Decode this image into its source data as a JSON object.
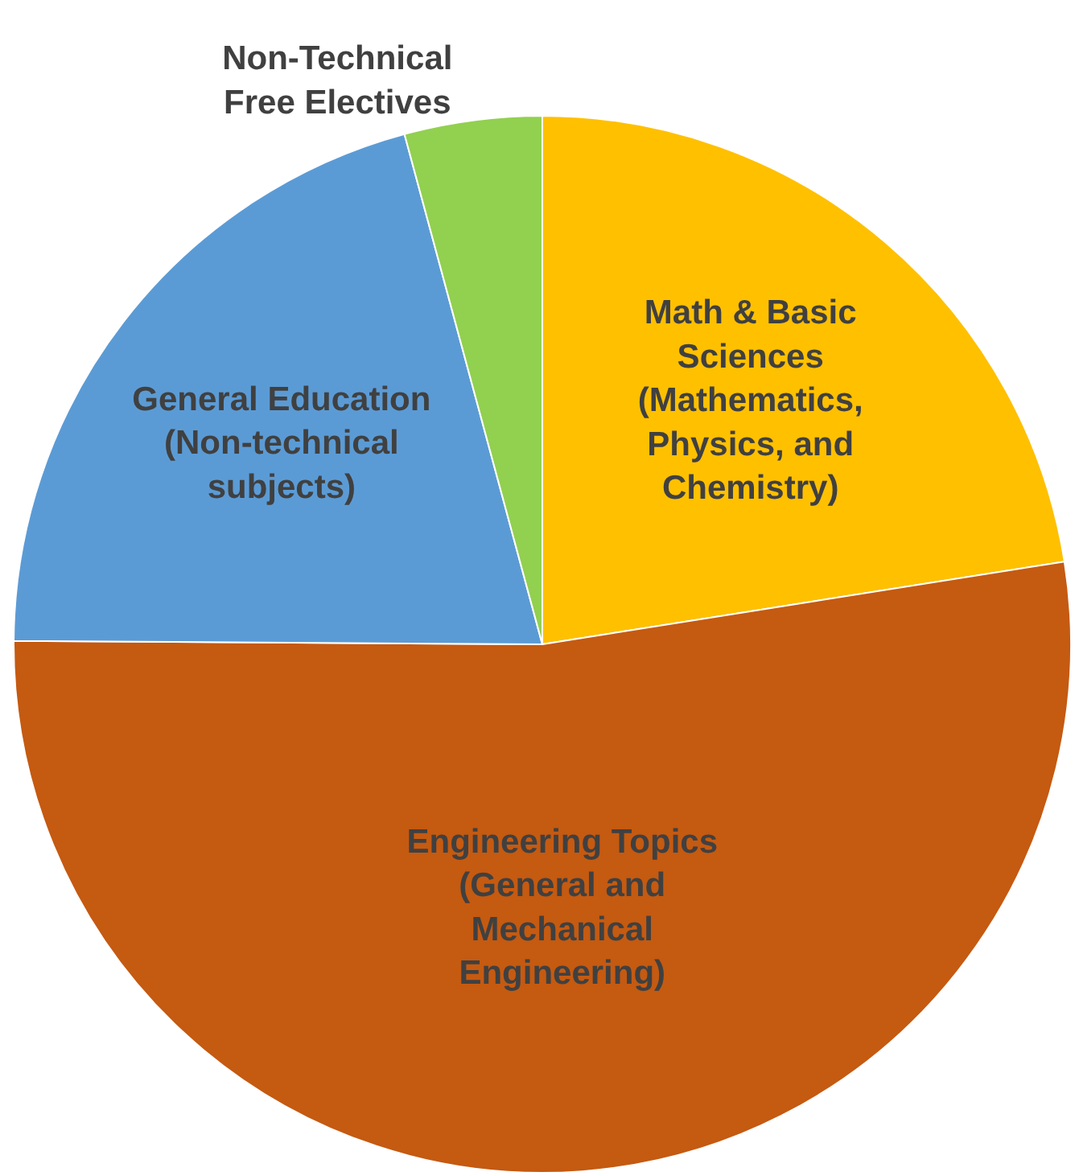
{
  "chart_data": {
    "type": "pie",
    "categories": [
      "Math & Basic Sciences (Mathematics, Physics, and Chemistry)",
      "Engineering Topics (General and Mechanical Engineering)",
      "General Education (Non-technical subjects)",
      "Non-Technical Free Electives"
    ],
    "values": [
      22.5,
      52.6,
      20.7,
      4.2
    ],
    "colors": [
      "#ffc000",
      "#c55a11",
      "#5b9bd5",
      "#92d050"
    ],
    "legend": false
  }
}
